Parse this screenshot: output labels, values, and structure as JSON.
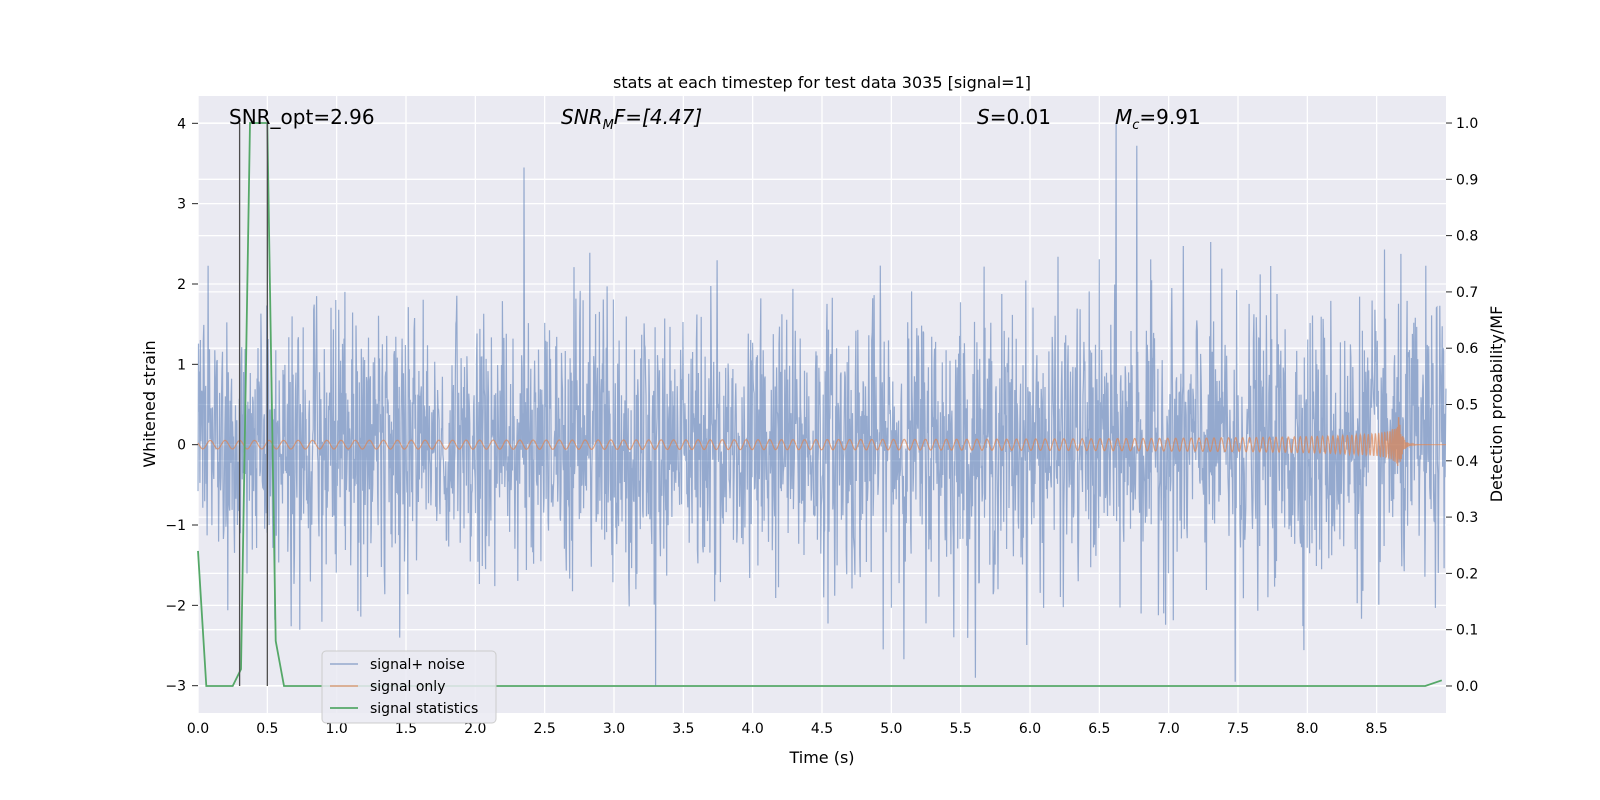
{
  "chart_data": {
    "type": "line",
    "title": "stats at each timestep for test data 3035 [signal=1]",
    "xlabel": "Time (s)",
    "ylabel_left": "Whitened strain",
    "ylabel_right": "Detection probability/MF",
    "xlim": [
      0.0,
      9.0
    ],
    "ylim_left": [
      -3.34,
      4.34
    ],
    "ylim_right": [
      -0.048,
      1.048
    ],
    "x_ticks": [
      "0.0",
      "0.5",
      "1.0",
      "1.5",
      "2.0",
      "2.5",
      "3.0",
      "3.5",
      "4.0",
      "4.5",
      "5.0",
      "5.5",
      "6.0",
      "6.5",
      "7.0",
      "7.5",
      "8.0",
      "8.5"
    ],
    "y_left_ticks": [
      "−3",
      "−2",
      "−1",
      "0",
      "1",
      "2",
      "3",
      "4"
    ],
    "y_right_ticks": [
      "0.0",
      "0.1",
      "0.2",
      "0.3",
      "0.4",
      "0.5",
      "0.6",
      "0.7",
      "0.8",
      "0.9",
      "1.0"
    ],
    "grid": true,
    "annotations": [
      {
        "id": "snr_opt",
        "text": "SNR_opt=2.96",
        "x": 0.2
      },
      {
        "id": "snr_mf",
        "text": "F=[4.47]",
        "prefix": "SNR",
        "sub": "M",
        "x": 2.6
      },
      {
        "id": "s_stat",
        "text": "=0.01",
        "prefix": "S",
        "x": 5.6
      },
      {
        "id": "mc",
        "text": "=9.91",
        "prefix": "M",
        "sub": "c",
        "x": 6.6
      }
    ],
    "vlines": [
      0.3,
      0.5
    ],
    "series": [
      {
        "name": "signal+ noise",
        "color": "#4c72b0",
        "kind": "noise",
        "std": 0.85,
        "peaks": [
          [
            2.35,
            3.45
          ],
          [
            6.62,
            4.0
          ],
          [
            6.77,
            3.72
          ],
          [
            3.3,
            -3.0
          ],
          [
            7.48,
            -2.95
          ]
        ]
      },
      {
        "name": "signal only",
        "color": "#dd8452",
        "kind": "chirp",
        "t_merge": 8.66,
        "peak_amp": 0.36
      },
      {
        "name": "signal statistics",
        "color": "#55a868",
        "kind": "stats",
        "x": [
          0.0,
          0.06,
          0.25,
          0.31,
          0.375,
          0.5,
          0.56,
          0.62,
          0.75,
          1.0,
          2.0,
          3.0,
          4.0,
          5.0,
          6.0,
          7.0,
          8.0,
          8.85,
          8.97
        ],
        "y": [
          0.24,
          0.0,
          0.0,
          0.03,
          1.0,
          1.0,
          0.08,
          0.0,
          0.0,
          0.0,
          0.0,
          0.0,
          0.0,
          0.0,
          0.0,
          0.0,
          0.0,
          0.0,
          0.01
        ]
      }
    ],
    "legend": {
      "position": "lower-left",
      "entries": [
        "signal+ noise",
        "signal only",
        "signal statistics"
      ]
    },
    "colors": {
      "axes_bg": "#eaeaf2",
      "grid": "#ffffff",
      "vline": "#4d4d4d"
    }
  }
}
